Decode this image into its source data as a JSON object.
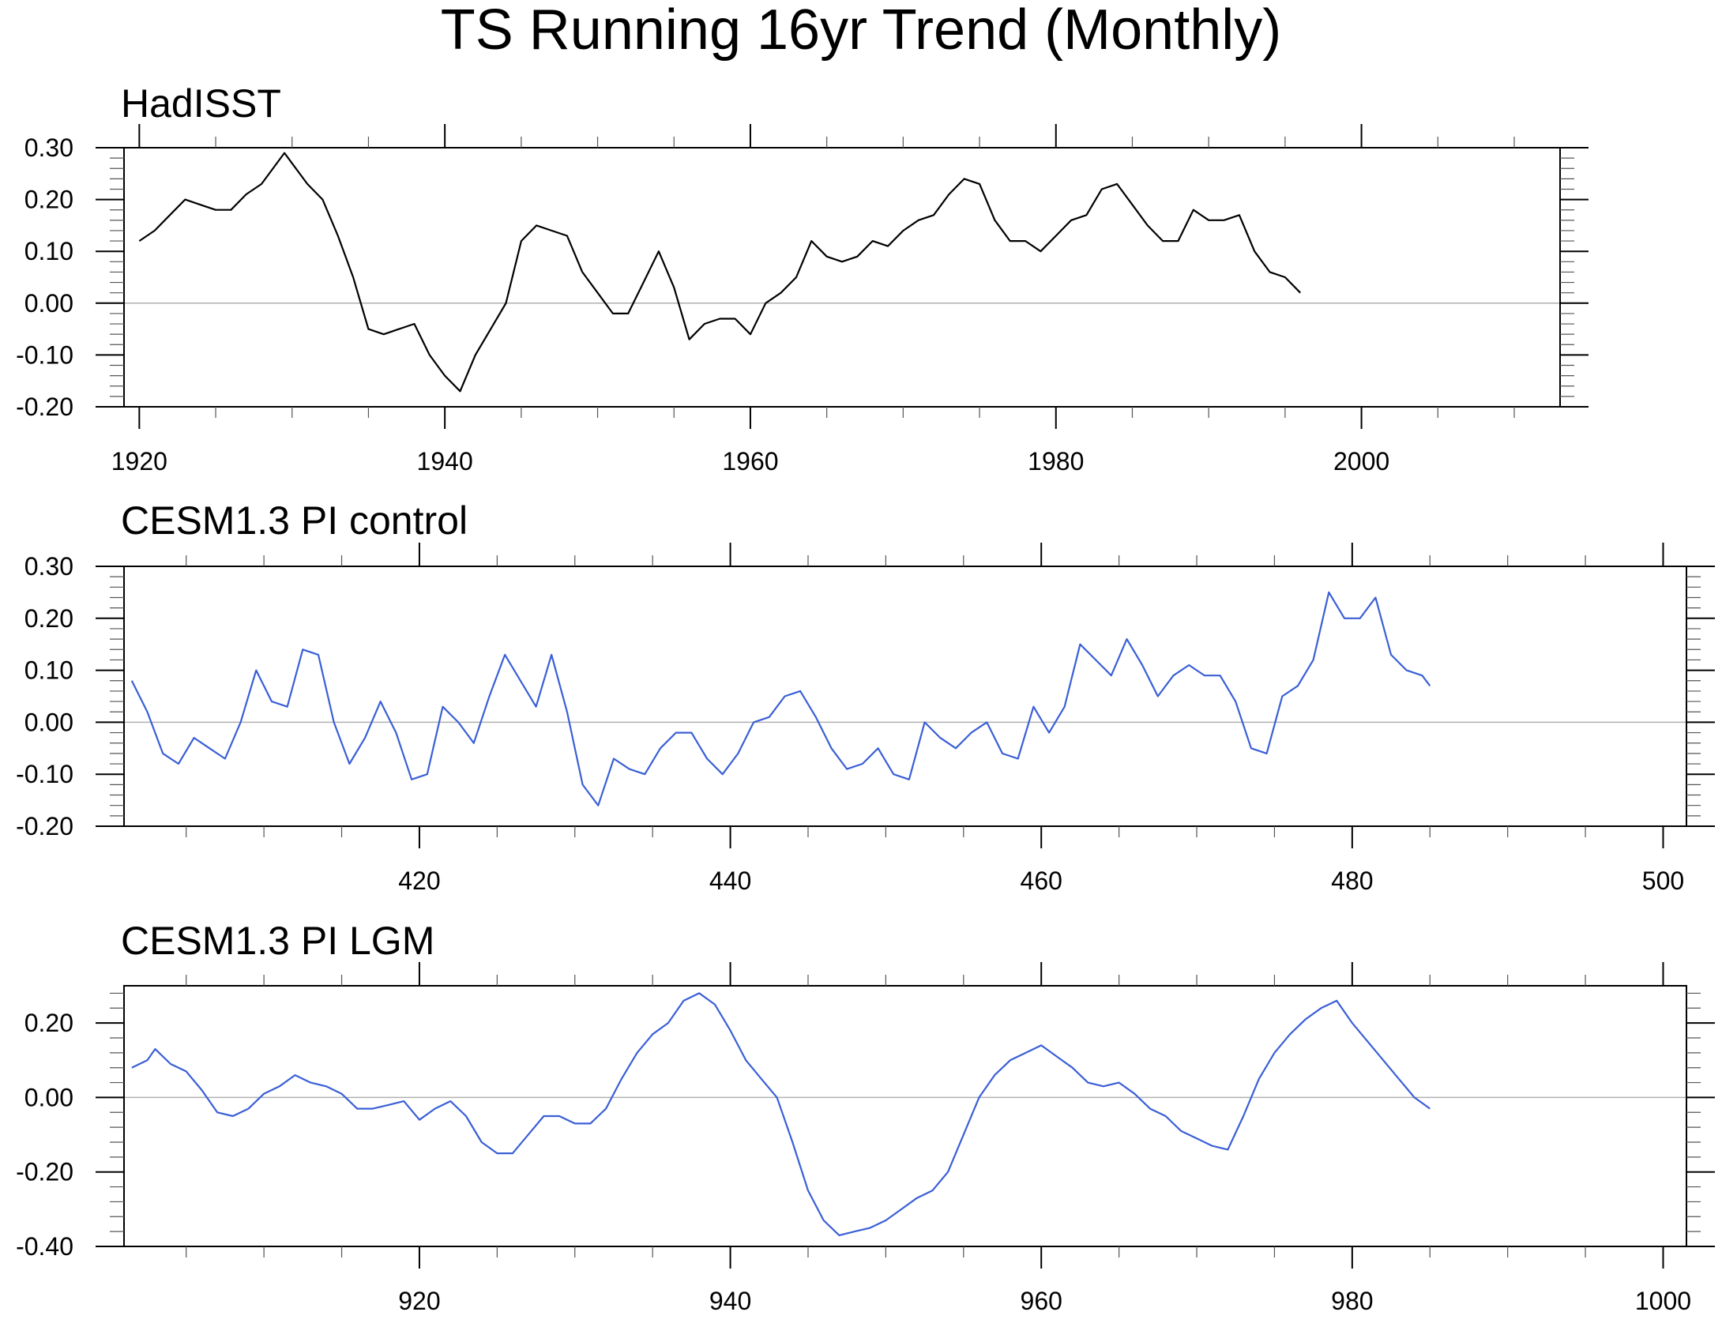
{
  "title": "TS Running 16yr Trend (Monthly)",
  "colors": {
    "hadisst": "#000000",
    "cesm": "#3a5fd6",
    "zero_line": "#b0b0b0"
  },
  "chart_data": [
    {
      "type": "line",
      "title": "HadISST",
      "xlim": [
        1919,
        2013
      ],
      "ylim": [
        -0.2,
        0.3
      ],
      "xticks": [
        1920,
        1940,
        1960,
        1980,
        2000
      ],
      "xtick_labels": [
        "1920",
        "1940",
        "1960",
        "1980",
        "2000"
      ],
      "yticks": [
        -0.2,
        -0.1,
        0.0,
        0.1,
        0.2,
        0.3
      ],
      "ytick_labels": [
        "-0.20",
        "-0.10",
        "0.00",
        "0.10",
        "0.20",
        "0.30"
      ],
      "zero_line": true,
      "series": [
        {
          "color": "#000000",
          "x": [
            1920,
            1921,
            1922,
            1923,
            1924,
            1925,
            1926,
            1927,
            1928,
            1929.5,
            1930,
            1931,
            1932,
            1933,
            1934,
            1935,
            1936,
            1937,
            1938,
            1939,
            1940,
            1941,
            1942,
            1943,
            1944,
            1945,
            1946,
            1947,
            1948,
            1949,
            1950,
            1951,
            1952,
            1953,
            1954,
            1955,
            1956,
            1957,
            1958,
            1959,
            1960,
            1961,
            1962,
            1963,
            1964,
            1965,
            1966,
            1967,
            1968,
            1969,
            1970,
            1971,
            1972,
            1973,
            1974,
            1975,
            1976,
            1977,
            1978,
            1979,
            1980,
            1981,
            1982,
            1983,
            1984,
            1985,
            1986,
            1987,
            1988,
            1989,
            1990,
            1991,
            1992,
            1993,
            1994,
            1995,
            1996
          ],
          "y": [
            0.12,
            0.14,
            0.17,
            0.2,
            0.19,
            0.18,
            0.18,
            0.21,
            0.23,
            0.29,
            0.27,
            0.23,
            0.2,
            0.13,
            0.05,
            -0.05,
            -0.06,
            -0.05,
            -0.04,
            -0.1,
            -0.14,
            -0.17,
            -0.1,
            -0.05,
            0.0,
            0.12,
            0.15,
            0.14,
            0.13,
            0.06,
            0.02,
            -0.02,
            -0.02,
            0.04,
            0.1,
            0.03,
            -0.07,
            -0.04,
            -0.03,
            -0.03,
            -0.06,
            0.0,
            0.02,
            0.05,
            0.12,
            0.09,
            0.08,
            0.09,
            0.12,
            0.11,
            0.14,
            0.16,
            0.17,
            0.21,
            0.24,
            0.23,
            0.16,
            0.12,
            0.12,
            0.1,
            0.13,
            0.16,
            0.17,
            0.22,
            0.23,
            0.19,
            0.15,
            0.12,
            0.12,
            0.18,
            0.16,
            0.16,
            0.17,
            0.1,
            0.06,
            0.05,
            0.02
          ]
        }
      ]
    },
    {
      "type": "line",
      "title": "CESM1.3 PI control",
      "xlim": [
        401,
        501.5
      ],
      "ylim": [
        -0.2,
        0.3
      ],
      "xticks": [
        420,
        440,
        460,
        480,
        500
      ],
      "xtick_labels": [
        "420",
        "440",
        "460",
        "480",
        "500"
      ],
      "yticks": [
        -0.2,
        -0.1,
        0.0,
        0.1,
        0.2,
        0.3
      ],
      "ytick_labels": [
        "-0.20",
        "-0.10",
        "0.00",
        "0.10",
        "0.20",
        "0.30"
      ],
      "zero_line": true,
      "series": [
        {
          "color": "#3a5fd6",
          "x": [
            401.5,
            402.5,
            403.5,
            404.5,
            405.5,
            406.5,
            407.5,
            408.5,
            409.5,
            410.5,
            411.5,
            412.5,
            413.5,
            414.5,
            415.5,
            416.5,
            417.5,
            418.5,
            419.5,
            420.5,
            421.5,
            422.5,
            423.5,
            424.5,
            425.5,
            426.5,
            427.5,
            428.5,
            429.5,
            430.5,
            431.5,
            432.5,
            433.5,
            434.5,
            435.5,
            436.5,
            437.5,
            438.5,
            439.5,
            440.5,
            441.5,
            442.5,
            443.5,
            444.5,
            445.5,
            446.5,
            447.5,
            448.5,
            449.5,
            450.5,
            451.5,
            452.5,
            453.5,
            454.5,
            455.5,
            456.5,
            457.5,
            458.5,
            459.5,
            460.5,
            461.5,
            462.5,
            463.5,
            464.5,
            465.5,
            466.5,
            467.5,
            468.5,
            469.5,
            470.5,
            471.5,
            472.5,
            473.5,
            474.5,
            475.5,
            476.5,
            477.5,
            478.5,
            479.5,
            480.5,
            481.5,
            482.5,
            483.5,
            484.5,
            485.0
          ],
          "y": [
            0.08,
            0.02,
            -0.06,
            -0.08,
            -0.03,
            -0.05,
            -0.07,
            0.0,
            0.1,
            0.04,
            0.03,
            0.14,
            0.13,
            0.0,
            -0.08,
            -0.03,
            0.04,
            -0.02,
            -0.11,
            -0.1,
            0.03,
            0.0,
            -0.04,
            0.05,
            0.13,
            0.08,
            0.03,
            0.13,
            0.02,
            -0.12,
            -0.16,
            -0.07,
            -0.09,
            -0.1,
            -0.05,
            -0.02,
            -0.02,
            -0.07,
            -0.1,
            -0.06,
            0.0,
            0.01,
            0.05,
            0.06,
            0.01,
            -0.05,
            -0.09,
            -0.08,
            -0.05,
            -0.1,
            -0.11,
            0.0,
            -0.03,
            -0.05,
            -0.02,
            0.0,
            -0.06,
            -0.07,
            0.03,
            -0.02,
            0.03,
            0.15,
            0.12,
            0.09,
            0.16,
            0.11,
            0.05,
            0.09,
            0.11,
            0.09,
            0.09,
            0.04,
            -0.05,
            -0.06,
            0.05,
            0.07,
            0.12,
            0.25,
            0.2,
            0.2,
            0.24,
            0.13,
            0.1,
            0.09,
            0.07
          ]
        }
      ]
    },
    {
      "type": "line",
      "title": "CESM1.3 PI LGM",
      "xlim": [
        901,
        1001.5
      ],
      "ylim": [
        -0.4,
        0.3
      ],
      "xticks": [
        920,
        940,
        960,
        980,
        1000
      ],
      "xtick_labels": [
        "920",
        "940",
        "960",
        "980",
        "1000"
      ],
      "yticks": [
        -0.4,
        -0.2,
        0.0,
        0.2
      ],
      "ytick_labels": [
        "-0.40",
        "-0.20",
        "0.00",
        "0.20"
      ],
      "zero_line": true,
      "series": [
        {
          "color": "#3a5fd6",
          "x": [
            901.5,
            902.5,
            903,
            904,
            905,
            906,
            907,
            908,
            909,
            910,
            911,
            912,
            913,
            914,
            915,
            916,
            917,
            918,
            919,
            920,
            921,
            922,
            923,
            924,
            925,
            926,
            927,
            928,
            929,
            930,
            931,
            932,
            933,
            934,
            935,
            936,
            937,
            938,
            939,
            940,
            941,
            942,
            943,
            944,
            945,
            946,
            947,
            948,
            949,
            950,
            951,
            952,
            953,
            954,
            955,
            956,
            957,
            958,
            959,
            960,
            961,
            962,
            963,
            964,
            965,
            966,
            967,
            968,
            969,
            970,
            971,
            972,
            973,
            974,
            975,
            976,
            977,
            978,
            979,
            980,
            981,
            982,
            983,
            984,
            985
          ],
          "y": [
            0.08,
            0.1,
            0.13,
            0.09,
            0.07,
            0.02,
            -0.04,
            -0.05,
            -0.03,
            0.01,
            0.03,
            0.06,
            0.04,
            0.03,
            0.01,
            -0.03,
            -0.03,
            -0.02,
            -0.01,
            -0.06,
            -0.03,
            -0.01,
            -0.05,
            -0.12,
            -0.15,
            -0.15,
            -0.1,
            -0.05,
            -0.05,
            -0.07,
            -0.07,
            -0.03,
            0.05,
            0.12,
            0.17,
            0.2,
            0.26,
            0.28,
            0.25,
            0.18,
            0.1,
            0.05,
            0.0,
            -0.12,
            -0.25,
            -0.33,
            -0.37,
            -0.36,
            -0.35,
            -0.33,
            -0.3,
            -0.27,
            -0.25,
            -0.2,
            -0.1,
            0.0,
            0.06,
            0.1,
            0.12,
            0.14,
            0.11,
            0.08,
            0.04,
            0.03,
            0.04,
            0.01,
            -0.03,
            -0.05,
            -0.09,
            -0.11,
            -0.13,
            -0.14,
            -0.05,
            0.05,
            0.12,
            0.17,
            0.21,
            0.24,
            0.26,
            0.2,
            0.15,
            0.1,
            0.05,
            0.0,
            -0.03
          ]
        }
      ]
    }
  ]
}
